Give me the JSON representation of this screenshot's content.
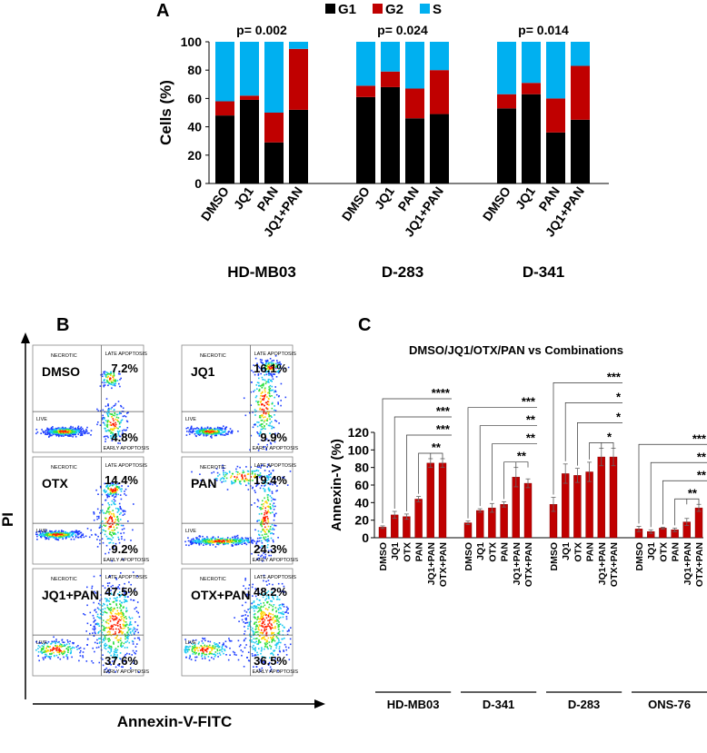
{
  "panel_labels": {
    "a": "A",
    "b": "B",
    "c": "C"
  },
  "chart_data": [
    {
      "id": "A",
      "type": "bar",
      "stacked": true,
      "ylabel": "Cells (%)",
      "ylim": [
        0,
        100
      ],
      "yticks": [
        "0",
        "20",
        "40",
        "60",
        "80",
        "100"
      ],
      "legend": [
        {
          "name": "G1",
          "color": "#000000"
        },
        {
          "name": "G2",
          "color": "#c00000"
        },
        {
          "name": "S",
          "color": "#00b0f0"
        }
      ],
      "groups": [
        {
          "name": "HD-MB03",
          "pvalue": "p= 0.002",
          "categories": [
            "DMSO",
            "JQ1",
            "PAN",
            "JQ1+PAN"
          ],
          "G1": [
            48,
            59,
            29,
            52
          ],
          "G2": [
            10,
            3,
            21,
            43
          ],
          "S": [
            42,
            38,
            50,
            5
          ]
        },
        {
          "name": "D-283",
          "pvalue": "p= 0.024",
          "categories": [
            "DMSO",
            "JQ1",
            "PAN",
            "JQ1+PAN"
          ],
          "G1": [
            61,
            68,
            46,
            49
          ],
          "G2": [
            8,
            11,
            21,
            31
          ],
          "S": [
            31,
            21,
            33,
            20
          ]
        },
        {
          "name": "D-341",
          "pvalue": "p= 0.014",
          "categories": [
            "DMSO",
            "JQ1",
            "PAN",
            "JQ1+PAN"
          ],
          "G1": [
            53,
            63,
            36,
            45
          ],
          "G2": [
            10,
            8,
            24,
            38
          ],
          "S": [
            37,
            29,
            40,
            17
          ]
        }
      ]
    },
    {
      "id": "C",
      "type": "bar",
      "title": "DMSO/JQ1/OTX/PAN vs Combinations",
      "ylabel": "Annexin-V (%)",
      "ylim": [
        0,
        120
      ],
      "yticks": [
        "0",
        "20",
        "40",
        "60",
        "80",
        "100",
        "120"
      ],
      "bar_color": "#c00000",
      "groups": [
        {
          "name": "HD-MB03",
          "categories": [
            "DMSO",
            "JQ1",
            "OTX",
            "PAN",
            "JQ1+PAN",
            "OTX+PAN"
          ],
          "values": [
            12,
            26,
            24,
            44,
            85,
            85
          ],
          "errors": [
            1.5,
            4,
            3,
            3,
            5,
            5
          ],
          "sig": [
            "****",
            "***",
            "***",
            "**"
          ]
        },
        {
          "name": "D-341",
          "categories": [
            "DMSO",
            "JQ1",
            "OTX",
            "PAN",
            "JQ1+PAN",
            "OTX+PAN"
          ],
          "values": [
            17,
            31,
            34,
            38,
            69,
            62
          ],
          "errors": [
            2,
            2,
            5,
            3,
            11,
            5
          ],
          "sig": [
            "***",
            "**",
            "**",
            "**"
          ]
        },
        {
          "name": "D-283",
          "categories": [
            "DMSO",
            "JQ1",
            "OTX",
            "PAN",
            "JQ1+PAN",
            "OTX+PAN"
          ],
          "values": [
            38,
            73,
            71,
            75,
            92,
            92
          ],
          "errors": [
            8,
            11,
            8,
            11,
            10,
            10
          ],
          "sig": [
            "***",
            "*",
            "*",
            "*"
          ]
        },
        {
          "name": "ONS-76",
          "categories": [
            "DMSO",
            "JQ1",
            "OTX",
            "PAN",
            "JQ1+PAN",
            "OTX+PAN"
          ],
          "values": [
            10,
            7,
            11,
            9,
            18,
            34
          ],
          "errors": [
            3,
            2,
            1,
            2,
            4,
            4
          ],
          "sig": [
            "***",
            "**",
            "**",
            "**"
          ]
        }
      ]
    }
  ],
  "flow": {
    "xlabel": "Annexin-V-FITC",
    "ylabel": "PI",
    "quadrants": {
      "necrotic": "NECROTIC",
      "late": "LATE APOPTOSIS",
      "live": "LIVE",
      "early": "EARLY APOPTOSIS"
    },
    "plots": [
      {
        "label": "DMSO",
        "late": "7.2%",
        "early": "4.8%"
      },
      {
        "label": "JQ1",
        "late": "16.1%",
        "early": "9.9%"
      },
      {
        "label": "OTX",
        "late": "14.4%",
        "early": "9.2%"
      },
      {
        "label": "PAN",
        "late": "19.4%",
        "early": "24.3%"
      },
      {
        "label": "JQ1+PAN",
        "late": "47.5%",
        "early": "37.6%"
      },
      {
        "label": "OTX+PAN",
        "late": "48.2%",
        "early": "36.5%"
      }
    ]
  }
}
